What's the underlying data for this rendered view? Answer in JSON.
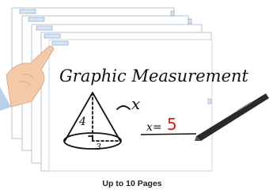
{
  "illustration": {
    "caption": "Up to 10 Pages",
    "handwriting": {
      "title": "Graphic Measurement",
      "angle_label": "x",
      "height_label": "4",
      "radius_label": "3",
      "equation": "x=",
      "answer": "5"
    }
  }
}
